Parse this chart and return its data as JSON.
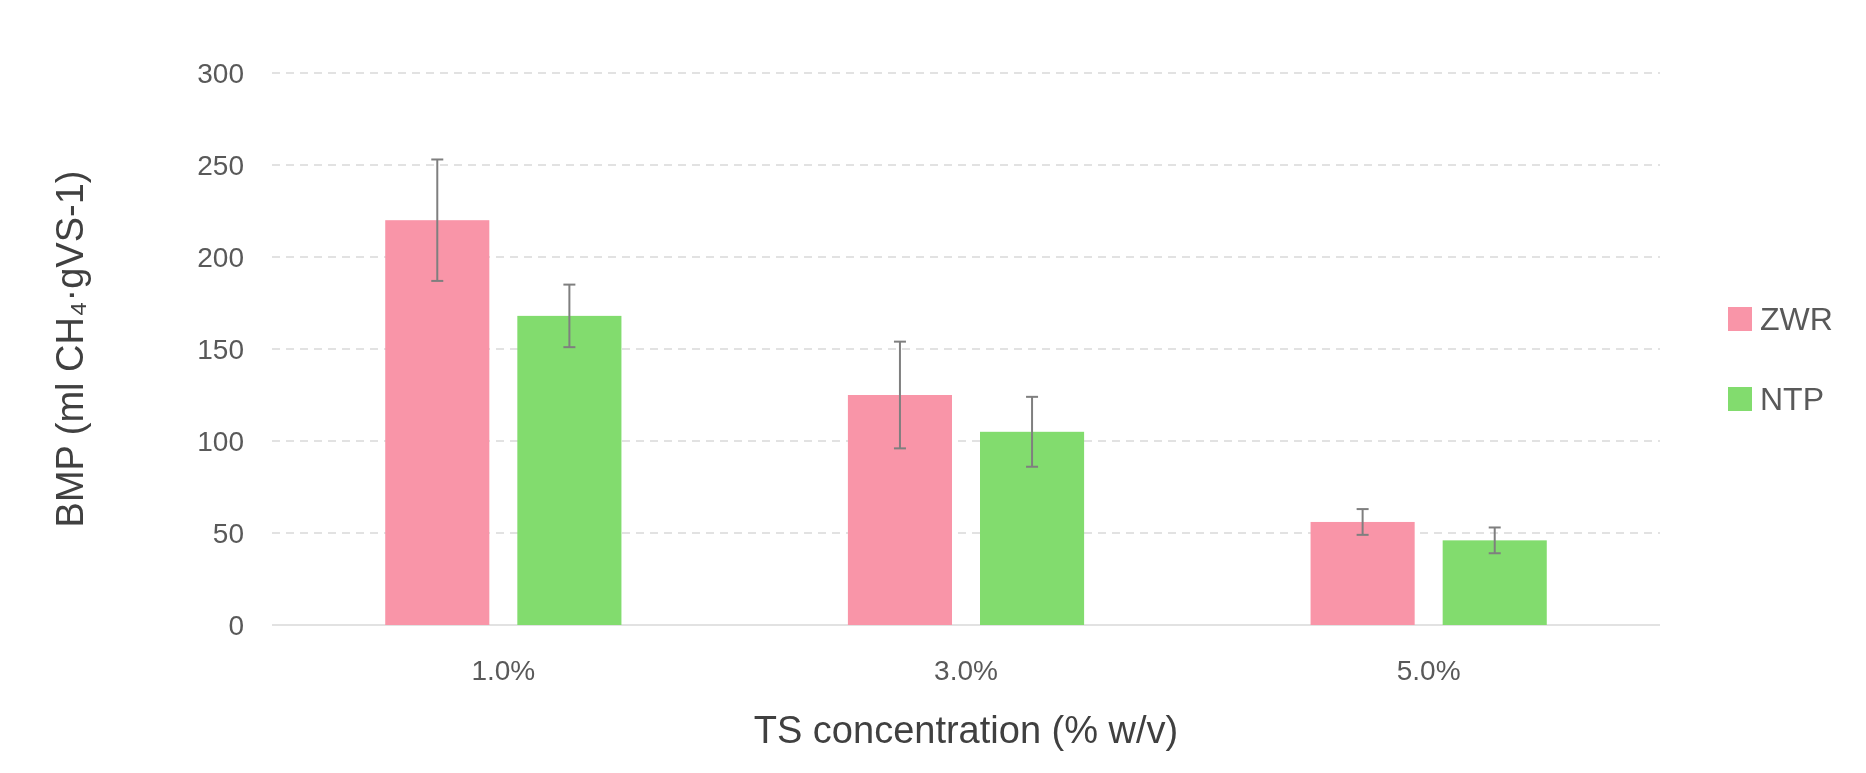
{
  "chart_data": {
    "type": "bar",
    "xlabel": "TS concentration (% w/v)",
    "ylabel": "BMP (ml CH₄·gVS-1)",
    "categories": [
      "1.0%",
      "3.0%",
      "5.0%"
    ],
    "series": [
      {
        "name": "ZWR",
        "color": "#f995a8",
        "values": [
          220,
          125,
          56
        ],
        "errors": [
          33,
          29,
          7
        ]
      },
      {
        "name": "NTP",
        "color": "#82dc6e",
        "values": [
          168,
          105,
          46
        ],
        "errors": [
          17,
          19,
          7
        ]
      }
    ],
    "ylim": [
      0,
      300
    ],
    "yticks": [
      0,
      50,
      100,
      150,
      200,
      250,
      300
    ],
    "grid": "y",
    "legend": "right"
  }
}
